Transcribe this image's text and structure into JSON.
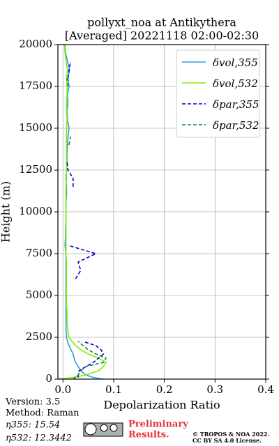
{
  "chart_data": {
    "type": "profile",
    "title": [
      "pollyxt_noa at Antikythera",
      "[Averaged] 20221118 02:00-02:30"
    ],
    "xlabel": "Depolarization Ratio",
    "ylabel": "Height (m)",
    "y": [
      0,
      100,
      250,
      500,
      750,
      1000,
      1250,
      1500,
      1750,
      2000,
      2250,
      2500,
      3000,
      3500,
      4000,
      4500,
      5000,
      5500,
      6000,
      6500,
      7000,
      7500,
      8000,
      8500,
      9000,
      9500,
      10000,
      10500,
      11000,
      11500,
      12000,
      12500,
      13000,
      13500,
      14000,
      14500,
      15000,
      15500,
      16000,
      16500,
      17000,
      17500,
      18000,
      18500,
      19000,
      19500,
      20000
    ],
    "series": [
      {
        "name": "δvol,355",
        "color": "#2a9be0",
        "dash": false,
        "values": [
          0.078,
          0.06,
          0.045,
          0.035,
          0.03,
          0.025,
          0.022,
          0.02,
          0.016,
          0.012,
          0.009,
          0.007,
          0.006,
          0.006,
          0.006,
          0.006,
          0.006,
          0.006,
          0.006,
          0.006,
          0.006,
          0.006,
          0.004,
          0.005,
          0.005,
          0.006,
          0.006,
          0.006,
          0.007,
          0.007,
          0.006,
          0.007,
          0.008,
          0.008,
          0.009,
          0.01,
          0.012,
          0.009,
          0.008,
          0.01,
          0.009,
          0.012,
          0.01,
          0.013,
          0.009,
          0.005,
          0.004
        ]
      },
      {
        "name": "δvol,532",
        "color": "#7cf000",
        "dash": false,
        "values": [
          -0.008,
          0.02,
          0.045,
          0.07,
          0.08,
          0.085,
          0.07,
          0.05,
          0.035,
          0.025,
          0.018,
          0.012,
          0.009,
          0.008,
          0.008,
          0.007,
          0.007,
          0.007,
          0.007,
          0.007,
          0.007,
          0.006,
          0.006,
          0.006,
          0.006,
          0.006,
          0.006,
          0.006,
          0.006,
          0.006,
          0.007,
          0.007,
          0.007,
          0.007,
          0.007,
          0.007,
          0.007,
          0.008,
          0.007,
          0.007,
          0.008,
          0.008,
          0.007,
          0.009,
          0.006,
          0.004,
          0.003
        ]
      },
      {
        "name": "δpar,355",
        "color": "#0000cc",
        "dash": true,
        "values": [
          null,
          0.03,
          0.03,
          0.032,
          0.045,
          0.06,
          0.07,
          0.08,
          0.075,
          0.065,
          0.04,
          null,
          null,
          null,
          null,
          null,
          null,
          null,
          0.025,
          0.035,
          0.03,
          0.065,
          0.01,
          null,
          null,
          null,
          null,
          null,
          null,
          0.02,
          0.02,
          0.01,
          0.008,
          null,
          null,
          null,
          null,
          null,
          null,
          null,
          null,
          null,
          0.01,
          0.012,
          0.015,
          null,
          null
        ]
      },
      {
        "name": "δpar,532",
        "color": "#1a7f3c",
        "dash": true,
        "values": [
          0.02,
          0.025,
          0.03,
          0.035,
          0.045,
          0.08,
          0.085,
          0.065,
          0.05,
          0.04,
          0.03,
          null,
          null,
          null,
          null,
          null,
          null,
          null,
          null,
          null,
          null,
          null,
          null,
          null,
          null,
          null,
          null,
          null,
          null,
          null,
          null,
          null,
          null,
          null,
          0.012,
          0.015,
          null,
          null,
          null,
          null,
          null,
          0.01,
          0.008,
          null,
          null,
          null,
          null
        ]
      }
    ],
    "xlim": [
      -0.01,
      0.4
    ],
    "xticks": [
      {
        "value": 0,
        "label": "0.0"
      },
      0.1,
      0.2,
      0.3,
      0.4
    ],
    "ylim": [
      0,
      20000
    ],
    "yticks": [
      0,
      2500,
      5000,
      7500,
      10000,
      12500,
      15000,
      17500,
      20000
    ],
    "grid": true,
    "legend": "upper right"
  },
  "footer": {
    "version": "Version: 3.5",
    "method": "Method: Raman",
    "eta355": "η355:  15.54",
    "eta532": "η532: 12.3442",
    "preliminary": [
      "Preliminary",
      "Results."
    ],
    "copyright": [
      "© TROPOS & NOA 2022.",
      "CC BY SA 4.0 License."
    ]
  }
}
